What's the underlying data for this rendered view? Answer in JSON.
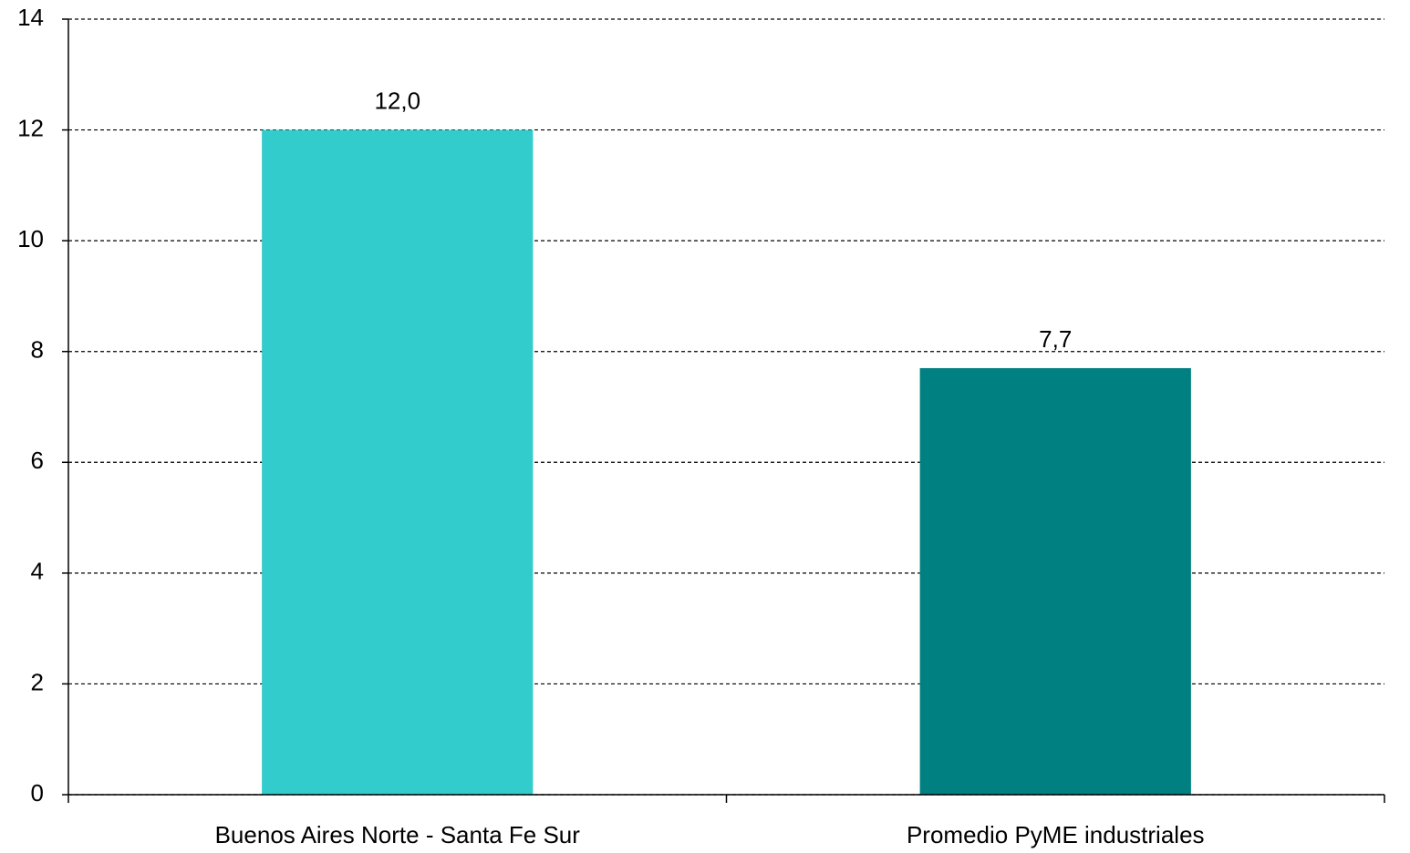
{
  "chart_data": {
    "type": "bar",
    "categories": [
      "Buenos Aires Norte - Santa Fe Sur",
      "Promedio PyME industriales"
    ],
    "values": [
      12.0,
      7.7
    ],
    "value_labels": [
      "12,0",
      "7,7"
    ],
    "colors": [
      "#33cccc",
      "#008080"
    ],
    "ylim": [
      0,
      14
    ],
    "yticks": [
      0,
      2,
      4,
      6,
      8,
      10,
      12,
      14
    ],
    "grid": true
  }
}
